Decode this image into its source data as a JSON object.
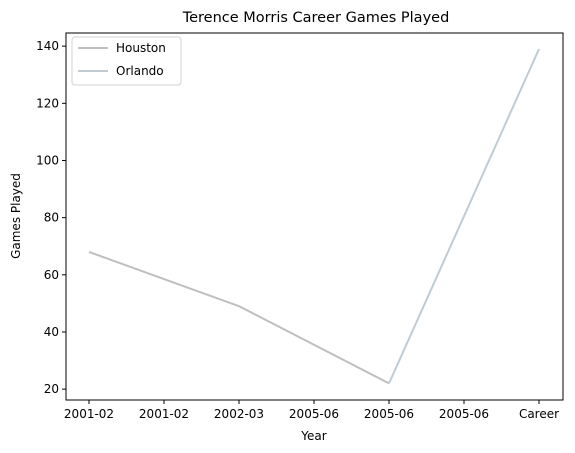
{
  "chart_data": {
    "type": "line",
    "title": "Terence Morris Career Games Played",
    "xlabel": "Year",
    "ylabel": "Games Played",
    "categories": [
      "2001-02",
      "2001-02",
      "2002-03",
      "2005-06",
      "2005-06",
      "2005-06",
      "Career"
    ],
    "ylim": [
      16.2,
      144.6
    ],
    "yticks": [
      20,
      40,
      60,
      80,
      100,
      120,
      140
    ],
    "grid": false,
    "legend_position": "top-left",
    "series": [
      {
        "name": "Houston",
        "color": "#bfbfbf",
        "values": [
          68,
          null,
          49,
          null,
          22,
          null,
          null
        ]
      },
      {
        "name": "Orlando",
        "color": "#c0cbd3",
        "values": [
          null,
          null,
          null,
          null,
          22,
          null,
          139
        ]
      }
    ]
  }
}
